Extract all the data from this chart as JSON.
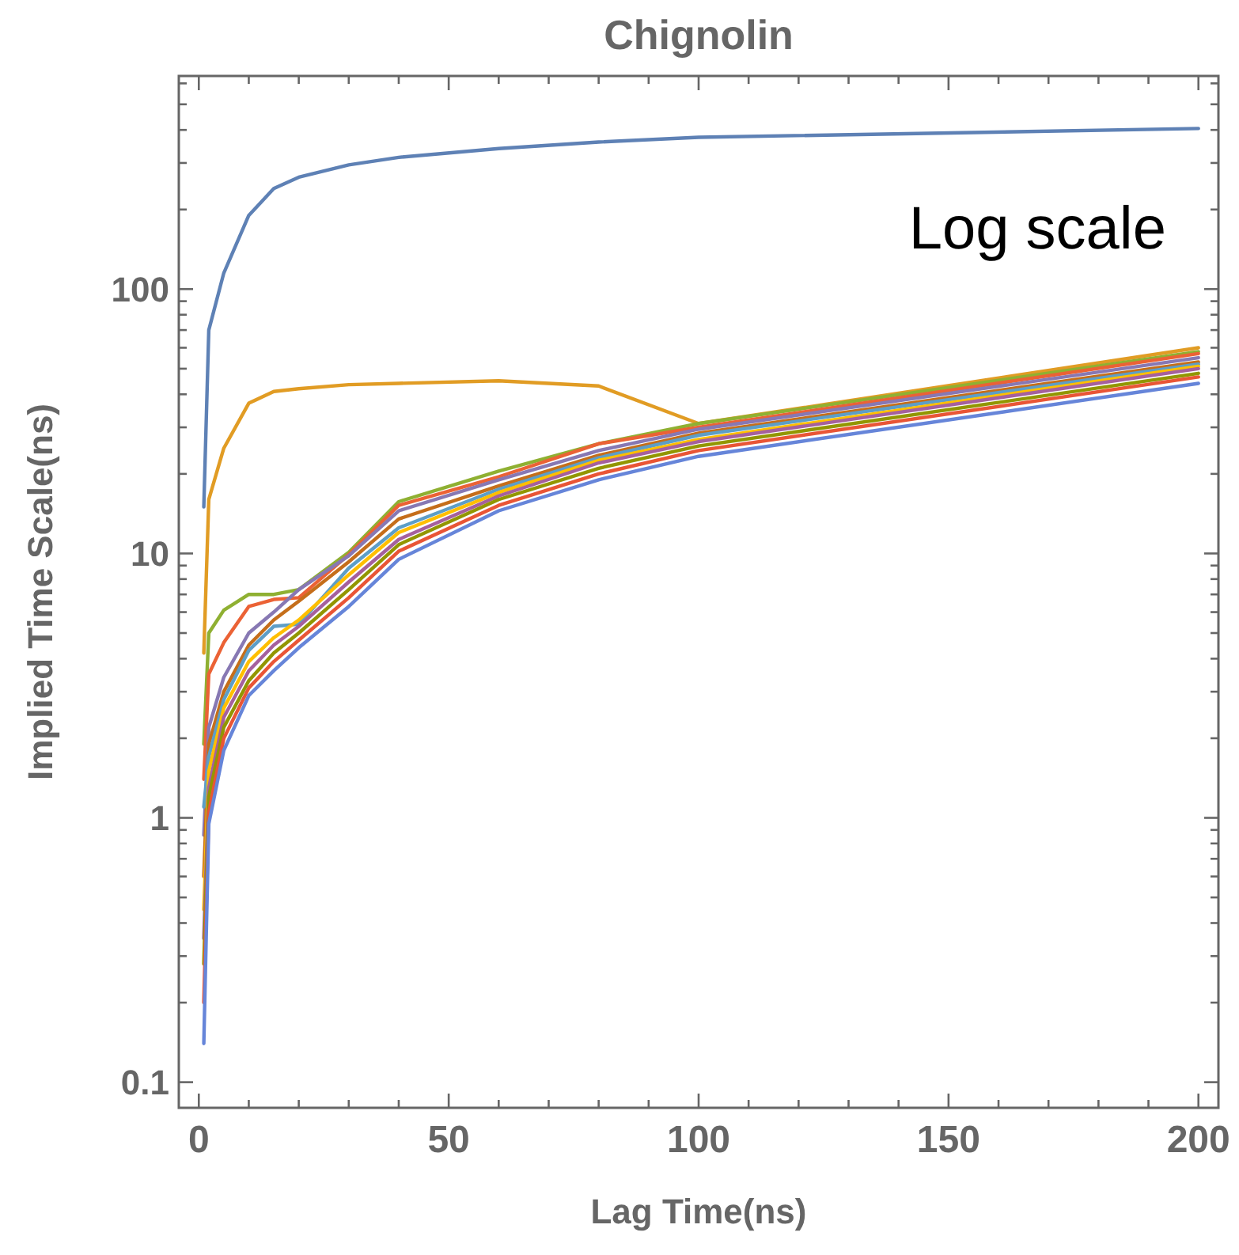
{
  "chart_data": {
    "type": "line",
    "title": "Chignolin",
    "xlabel": "Lag Time(ns)",
    "ylabel": "Implied Time Scale(ns)",
    "log": "y",
    "annotations": [
      "Log scale"
    ],
    "x": [
      1,
      2,
      5,
      10,
      15,
      20,
      30,
      40,
      60,
      80,
      100,
      200
    ],
    "xlim": [
      -4,
      204
    ],
    "xticks": [
      0,
      {
        "value": 10,
        "label": null
      },
      {
        "value": 20,
        "label": null
      },
      {
        "value": 30,
        "label": null
      },
      {
        "value": 40,
        "label": null
      },
      50,
      {
        "value": 60,
        "label": null
      },
      {
        "value": 70,
        "label": null
      },
      {
        "value": 80,
        "label": null
      },
      {
        "value": 90,
        "label": null
      },
      100,
      {
        "value": 110,
        "label": null
      },
      {
        "value": 120,
        "label": null
      },
      {
        "value": 130,
        "label": null
      },
      {
        "value": 140,
        "label": null
      },
      150,
      {
        "value": 160,
        "label": null
      },
      {
        "value": 170,
        "label": null
      },
      {
        "value": 180,
        "label": null
      },
      {
        "value": 190,
        "label": null
      },
      200
    ],
    "ylim": [
      0.08,
      640
    ],
    "yticks": [
      0.1,
      {
        "value": 0.2,
        "label": null
      },
      {
        "value": 0.3,
        "label": null
      },
      {
        "value": 0.4,
        "label": null
      },
      {
        "value": 0.5,
        "label": null
      },
      {
        "value": 0.6,
        "label": null
      },
      {
        "value": 0.7,
        "label": null
      },
      {
        "value": 0.8,
        "label": null
      },
      {
        "value": 0.9,
        "label": null
      },
      1,
      {
        "value": 2,
        "label": null
      },
      {
        "value": 3,
        "label": null
      },
      {
        "value": 4,
        "label": null
      },
      {
        "value": 5,
        "label": null
      },
      {
        "value": 6,
        "label": null
      },
      {
        "value": 7,
        "label": null
      },
      {
        "value": 8,
        "label": null
      },
      {
        "value": 9,
        "label": null
      },
      10,
      {
        "value": 20,
        "label": null
      },
      {
        "value": 30,
        "label": null
      },
      {
        "value": 40,
        "label": null
      },
      {
        "value": 50,
        "label": null
      },
      {
        "value": 60,
        "label": null
      },
      {
        "value": 70,
        "label": null
      },
      {
        "value": 80,
        "label": null
      },
      {
        "value": 90,
        "label": null
      },
      100,
      {
        "value": 200,
        "label": null
      },
      {
        "value": 300,
        "label": null
      },
      {
        "value": 400,
        "label": null
      },
      {
        "value": 500,
        "label": null
      },
      {
        "value": 600,
        "label": null
      }
    ],
    "series": [
      {
        "color": "#5e81b5",
        "values": [
          15,
          70,
          115,
          190,
          240,
          265,
          295,
          315,
          340,
          360,
          375,
          405
        ]
      },
      {
        "color": "#e19c24",
        "values": [
          4.2,
          16,
          25,
          37,
          41,
          42,
          43.5,
          44,
          45,
          43,
          31,
          60
        ]
      },
      {
        "color": "#8fb032",
        "values": [
          1.9,
          5,
          6.1,
          7,
          7,
          7.3,
          10.1,
          15.7,
          20.5,
          26,
          31,
          58
        ]
      },
      {
        "color": "#eb6235",
        "values": [
          1.4,
          3.5,
          4.6,
          6.3,
          6.7,
          6.8,
          9.9,
          15.2,
          19.5,
          26,
          30,
          57
        ]
      },
      {
        "color": "#8778b3",
        "values": [
          0.86,
          2.2,
          3.4,
          5,
          6,
          7.3,
          9.8,
          14.5,
          19,
          24.5,
          29.5,
          55
        ]
      },
      {
        "color": "#c56e1a",
        "values": [
          0.6,
          1.9,
          3,
          4.5,
          5.6,
          6.6,
          9.3,
          13.5,
          18,
          23.5,
          28.5,
          53
        ]
      },
      {
        "color": "#5d9ec7",
        "values": [
          1.1,
          1.7,
          2.8,
          4.3,
          5.3,
          5.4,
          8.8,
          12.5,
          17.5,
          23,
          28,
          52
        ]
      },
      {
        "color": "#ffbf00",
        "values": [
          0.45,
          1.5,
          2.6,
          3.9,
          4.8,
          5.6,
          8.3,
          12,
          17,
          22.5,
          27,
          51
        ]
      },
      {
        "color": "#a5609d",
        "values": [
          0.35,
          1.3,
          2.4,
          3.6,
          4.5,
          5.3,
          7.8,
          11.3,
          16.5,
          22,
          26.5,
          50
        ]
      },
      {
        "color": "#929600",
        "values": [
          0.28,
          1.2,
          2.2,
          3.3,
          4.2,
          5,
          7.3,
          10.8,
          16,
          21,
          25.5,
          48
        ]
      },
      {
        "color": "#e95536",
        "values": [
          0.2,
          1.05,
          2,
          3.1,
          3.9,
          4.7,
          6.8,
          10.2,
          15.2,
          20,
          24.5,
          46.5
        ]
      },
      {
        "color": "#6685d9",
        "values": [
          0.14,
          0.95,
          1.8,
          2.9,
          3.6,
          4.4,
          6.3,
          9.5,
          14.5,
          19,
          23.3,
          44
        ]
      }
    ]
  }
}
